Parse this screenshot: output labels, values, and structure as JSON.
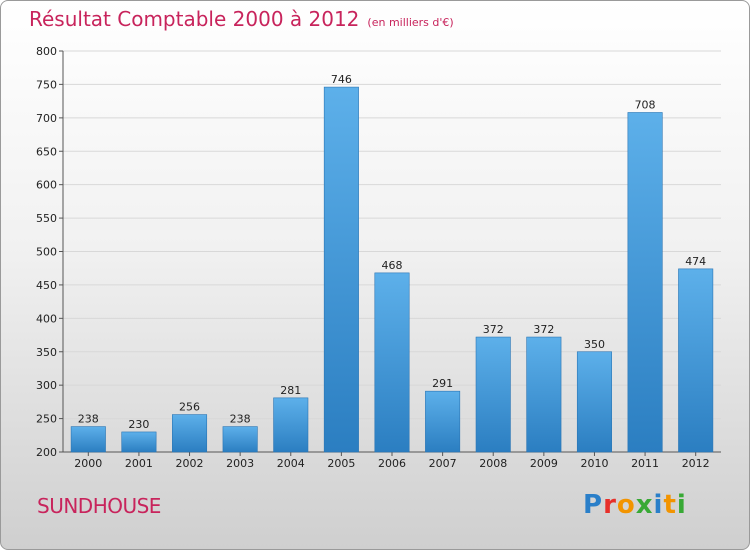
{
  "header": {
    "title": "Résultat Comptable 2000 à 2012",
    "subtitle": "(en milliers d'€)"
  },
  "footer": {
    "city": "SUNDHOUSE",
    "brand": "Proxiti",
    "brand_colors": [
      "#2a7fc9",
      "#e7302a",
      "#f29400",
      "#38a935",
      "#2a7fc9",
      "#f29400",
      "#38a935"
    ]
  },
  "chart_data": {
    "type": "bar",
    "title": "Résultat Comptable 2000 à 2012",
    "subtitle": "(en milliers d'€)",
    "xlabel": "",
    "ylabel": "",
    "categories": [
      "2000",
      "2001",
      "2002",
      "2003",
      "2004",
      "2005",
      "2006",
      "2007",
      "2008",
      "2009",
      "2010",
      "2011",
      "2012"
    ],
    "values": [
      238,
      230,
      256,
      238,
      281,
      746,
      468,
      291,
      372,
      372,
      350,
      708,
      474
    ],
    "ylim": [
      200,
      800
    ],
    "yticks": [
      200,
      250,
      300,
      350,
      400,
      450,
      500,
      550,
      600,
      650,
      700,
      750,
      800
    ],
    "grid": true,
    "bar_color_top": "#5db0ea",
    "bar_color_bottom": "#2b7ec1"
  }
}
